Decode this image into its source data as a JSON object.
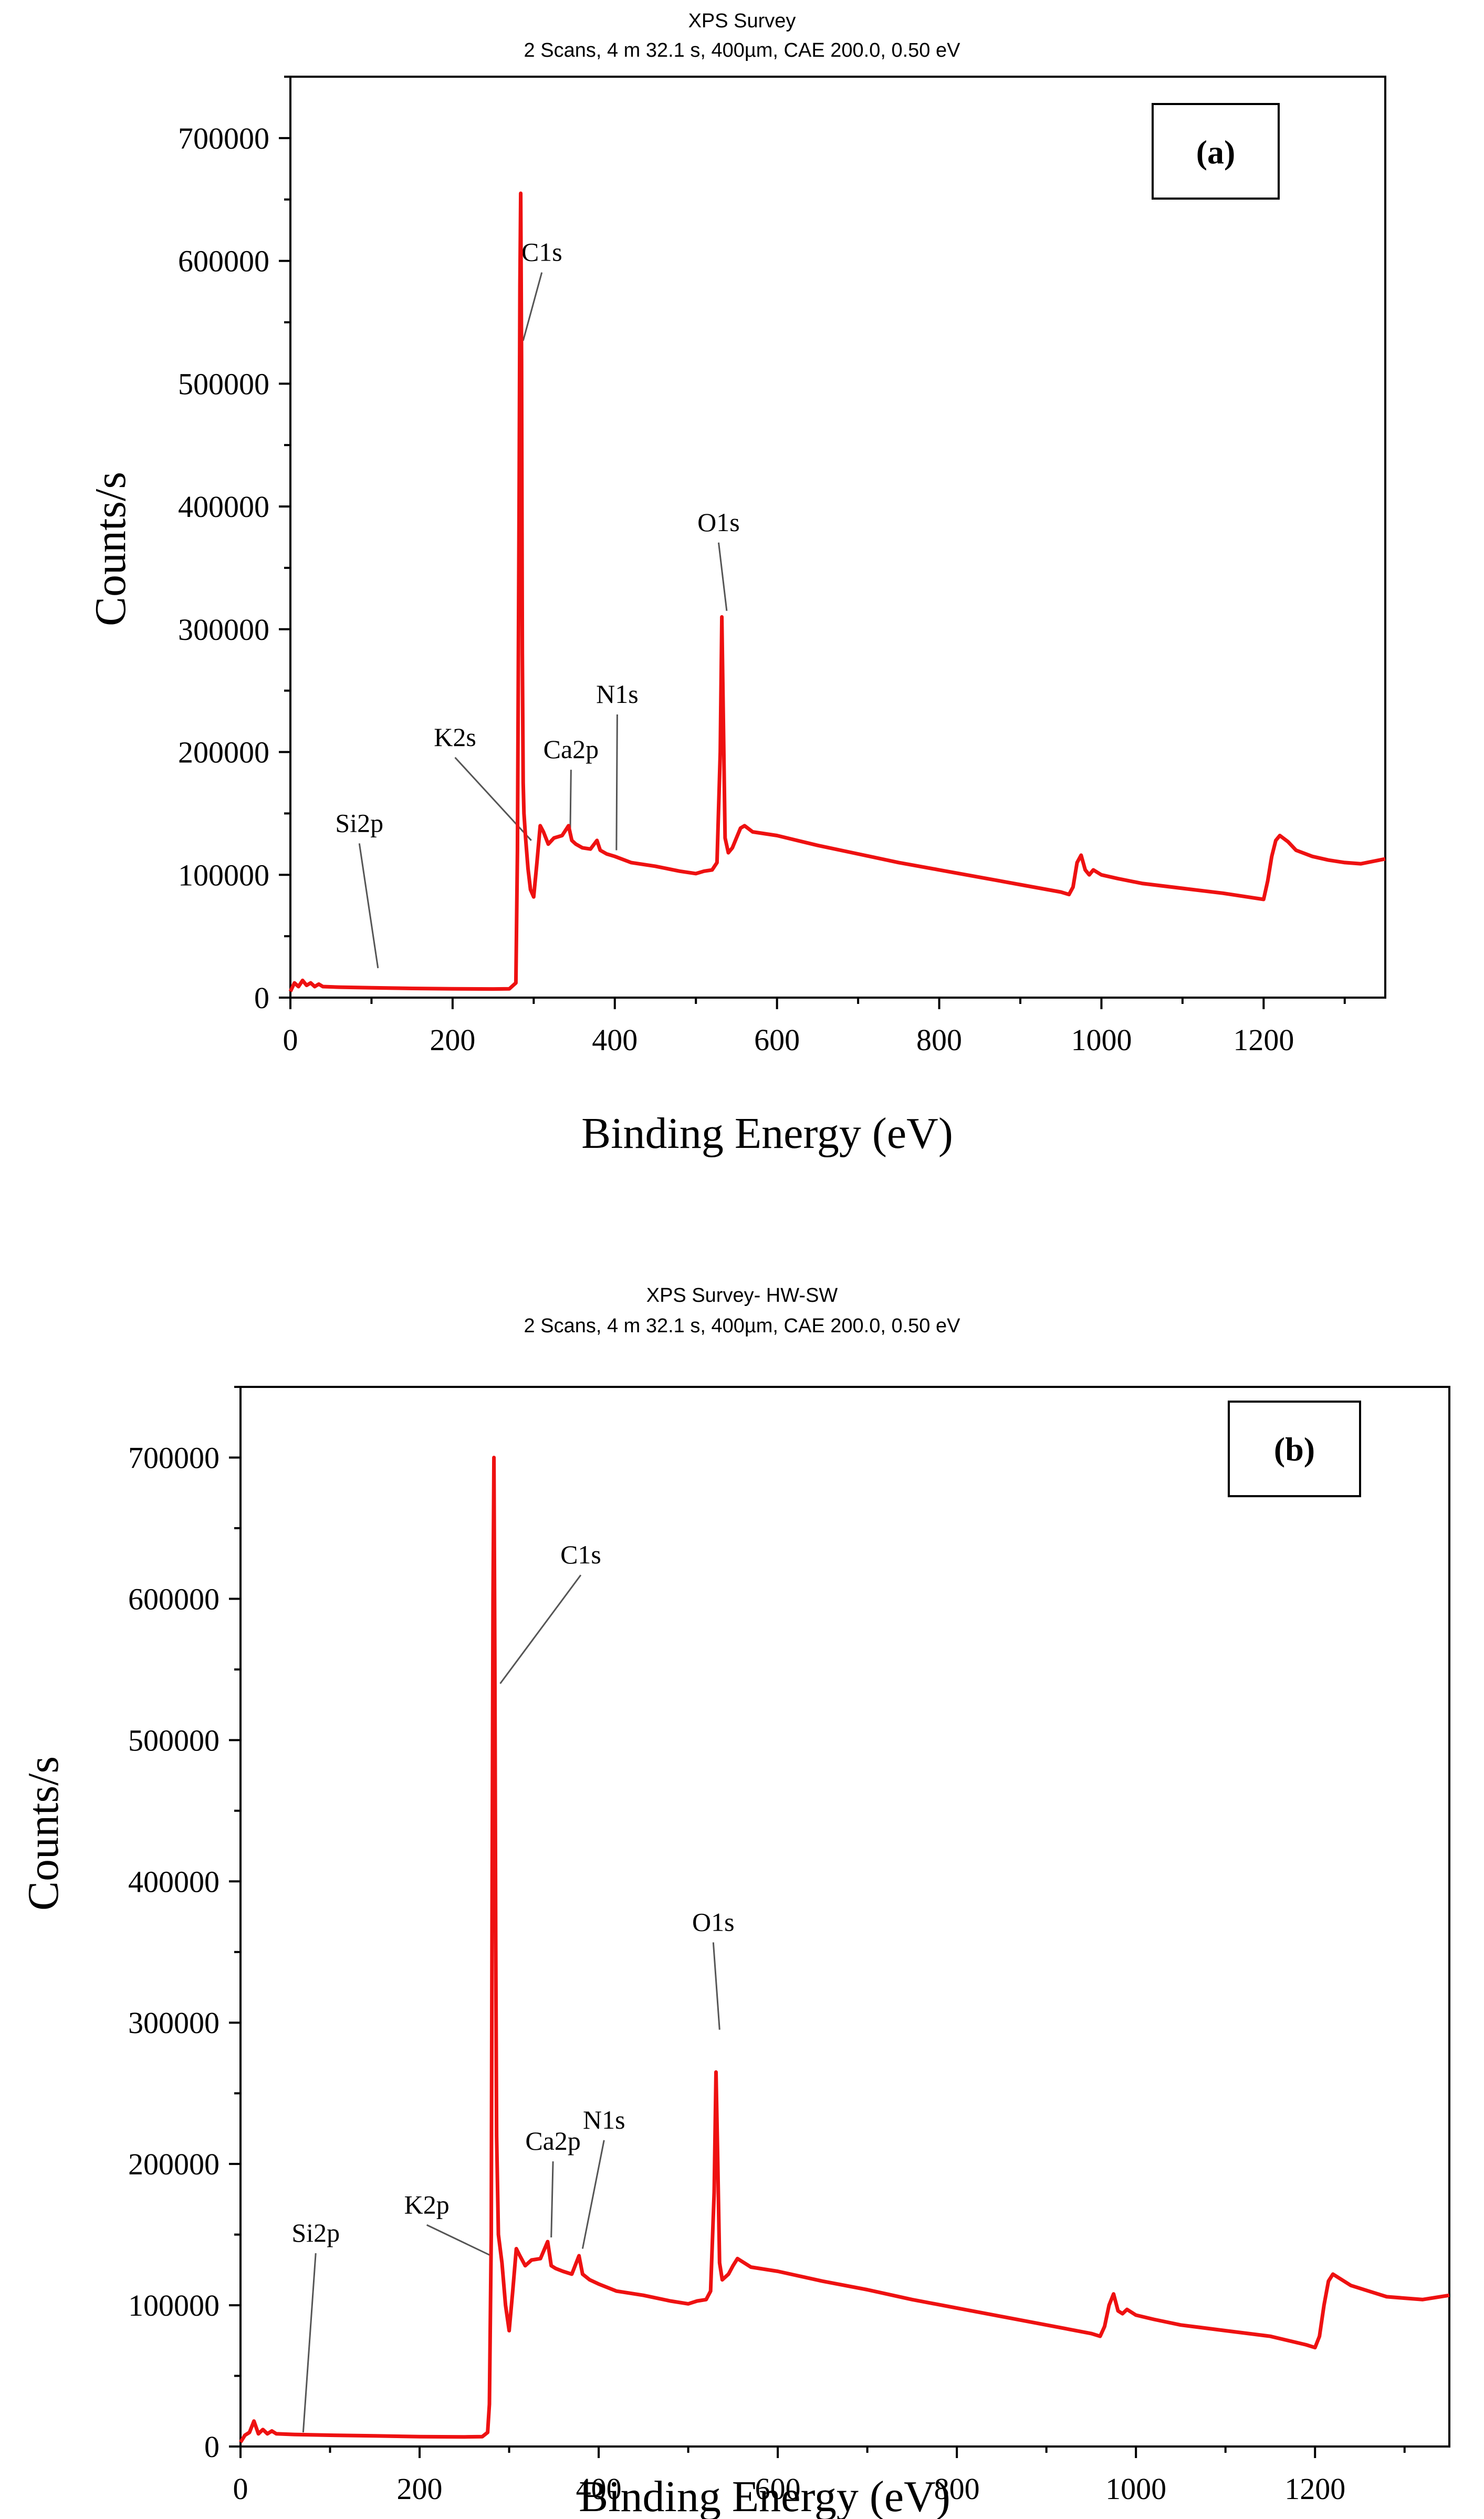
{
  "chart_data": [
    {
      "id": "a",
      "type": "line",
      "title_line1": "XPS Survey",
      "title_line2": "2 Scans,  4 m 32.1 s,  400µm,  CAE 200.0,  0.50 eV",
      "panel_label": "(a)",
      "xlabel": "Binding Energy (eV)",
      "ylabel": "Counts/s",
      "xlim": [
        0,
        1350
      ],
      "ylim": [
        0,
        750000
      ],
      "xticks": [
        0,
        200,
        400,
        600,
        800,
        1000,
        1200
      ],
      "yticks": [
        0,
        100000,
        200000,
        300000,
        400000,
        500000,
        600000,
        700000
      ],
      "line_color": "#ee1111",
      "series": [
        {
          "name": "XPS Survey",
          "x": [
            0,
            5,
            10,
            15,
            20,
            25,
            30,
            35,
            40,
            60,
            100,
            150,
            200,
            250,
            270,
            278,
            280,
            282,
            283,
            284,
            285,
            286,
            287,
            288,
            290,
            293,
            296,
            300,
            304,
            308,
            312,
            318,
            325,
            335,
            343,
            347,
            352,
            360,
            370,
            378,
            382,
            390,
            400,
            420,
            450,
            480,
            500,
            510,
            520,
            526,
            530,
            532,
            534,
            536,
            540,
            545,
            550,
            555,
            560,
            570,
            600,
            650,
            700,
            750,
            800,
            850,
            900,
            950,
            960,
            965,
            970,
            975,
            980,
            985,
            990,
            1000,
            1020,
            1050,
            1100,
            1150,
            1190,
            1200,
            1205,
            1210,
            1215,
            1220,
            1230,
            1240,
            1260,
            1280,
            1300,
            1320,
            1350
          ],
          "y": [
            5000,
            12000,
            9000,
            14000,
            10000,
            12000,
            9000,
            11000,
            9000,
            8500,
            8000,
            7500,
            7200,
            7000,
            7200,
            12000,
            120000,
            400000,
            580000,
            655000,
            520000,
            280000,
            175000,
            150000,
            130000,
            105000,
            88000,
            82000,
            110000,
            140000,
            135000,
            125000,
            130000,
            132000,
            140000,
            128000,
            125000,
            122000,
            121000,
            128000,
            120000,
            117000,
            115000,
            110000,
            107000,
            103000,
            101000,
            103000,
            104000,
            110000,
            200000,
            310000,
            220000,
            130000,
            118000,
            122000,
            130000,
            138000,
            140000,
            135000,
            132000,
            124000,
            117000,
            110000,
            104000,
            98000,
            92000,
            86000,
            84000,
            90000,
            110000,
            116000,
            104000,
            100000,
            104000,
            100000,
            97000,
            93000,
            89000,
            85000,
            81000,
            80000,
            95000,
            115000,
            128000,
            132000,
            127000,
            120000,
            115000,
            112000,
            110000,
            109000,
            113000
          ]
        }
      ],
      "annotations": [
        {
          "label": "C1s",
          "label_x": 310,
          "label_y": 600000,
          "tip_x": 287,
          "tip_y": 535000
        },
        {
          "label": "O1s",
          "label_x": 528,
          "label_y": 380000,
          "tip_x": 538,
          "tip_y": 315000
        },
        {
          "label": "N1s",
          "label_x": 403,
          "label_y": 240000,
          "tip_x": 402,
          "tip_y": 120000
        },
        {
          "label": "Ca2p",
          "label_x": 346,
          "label_y": 195000,
          "tip_x": 345,
          "tip_y": 133000
        },
        {
          "label": "K2s",
          "label_x": 203,
          "label_y": 205000,
          "tip_x": 297,
          "tip_y": 128000
        },
        {
          "label": "Si2p",
          "label_x": 85,
          "label_y": 135000,
          "tip_x": 108,
          "tip_y": 24000
        }
      ]
    },
    {
      "id": "b",
      "type": "line",
      "title_line1": "XPS Survey- HW-SW",
      "title_line2": "2 Scans,  4 m 32.1 s,  400µm,  CAE 200.0,  0.50 eV",
      "panel_label": "(b)",
      "xlabel": "Binding Energy (eV)",
      "ylabel": "Counts/s",
      "xlim": [
        0,
        1350
      ],
      "ylim": [
        0,
        750000
      ],
      "xticks": [
        0,
        200,
        400,
        600,
        800,
        1000,
        1200
      ],
      "yticks": [
        0,
        100000,
        200000,
        300000,
        400000,
        500000,
        600000,
        700000
      ],
      "line_color": "#ee1111",
      "series": [
        {
          "name": "XPS Survey- HW-SW",
          "x": [
            0,
            5,
            10,
            15,
            20,
            25,
            30,
            35,
            40,
            60,
            100,
            150,
            200,
            250,
            270,
            276,
            278,
            280,
            281,
            282,
            283,
            284,
            285,
            286,
            288,
            292,
            296,
            300,
            304,
            308,
            312,
            318,
            325,
            335,
            343,
            347,
            352,
            360,
            370,
            378,
            382,
            390,
            400,
            420,
            450,
            480,
            500,
            510,
            520,
            525,
            529,
            531,
            533,
            535,
            538,
            545,
            550,
            555,
            560,
            570,
            600,
            650,
            700,
            750,
            800,
            850,
            900,
            950,
            960,
            965,
            970,
            975,
            980,
            985,
            990,
            1000,
            1020,
            1050,
            1100,
            1150,
            1190,
            1200,
            1205,
            1210,
            1215,
            1220,
            1230,
            1240,
            1260,
            1280,
            1300,
            1320,
            1350
          ],
          "y": [
            3000,
            8000,
            10000,
            18000,
            9000,
            12000,
            9000,
            11000,
            9000,
            8500,
            8000,
            7500,
            7000,
            6800,
            7000,
            10000,
            30000,
            150000,
            400000,
            600000,
            700000,
            560000,
            360000,
            220000,
            150000,
            130000,
            100000,
            82000,
            110000,
            140000,
            135000,
            128000,
            132000,
            133000,
            145000,
            128000,
            126000,
            124000,
            122000,
            135000,
            122000,
            118000,
            115000,
            110000,
            107000,
            103000,
            101000,
            103000,
            104000,
            110000,
            180000,
            265000,
            200000,
            130000,
            118000,
            122000,
            128000,
            133000,
            131000,
            127000,
            124000,
            117000,
            111000,
            104000,
            98000,
            92000,
            86000,
            80000,
            78000,
            85000,
            100000,
            108000,
            96000,
            94000,
            97000,
            93000,
            90000,
            86000,
            82000,
            78000,
            72000,
            70000,
            78000,
            100000,
            117000,
            122000,
            118000,
            114000,
            110000,
            106000,
            105000,
            104000,
            107000
          ]
        }
      ],
      "annotations": [
        {
          "label": "C1s",
          "label_x": 380,
          "label_y": 625000,
          "tip_x": 290,
          "tip_y": 540000
        },
        {
          "label": "O1s",
          "label_x": 528,
          "label_y": 365000,
          "tip_x": 535,
          "tip_y": 295000
        },
        {
          "label": "N1s",
          "label_x": 406,
          "label_y": 225000,
          "tip_x": 382,
          "tip_y": 140000
        },
        {
          "label": "Ca2p",
          "label_x": 349,
          "label_y": 210000,
          "tip_x": 347,
          "tip_y": 148000
        },
        {
          "label": "K2p",
          "label_x": 208,
          "label_y": 165000,
          "tip_x": 280,
          "tip_y": 135000
        },
        {
          "label": "Si2p",
          "label_x": 84,
          "label_y": 145000,
          "tip_x": 70,
          "tip_y": 10000
        }
      ]
    }
  ]
}
